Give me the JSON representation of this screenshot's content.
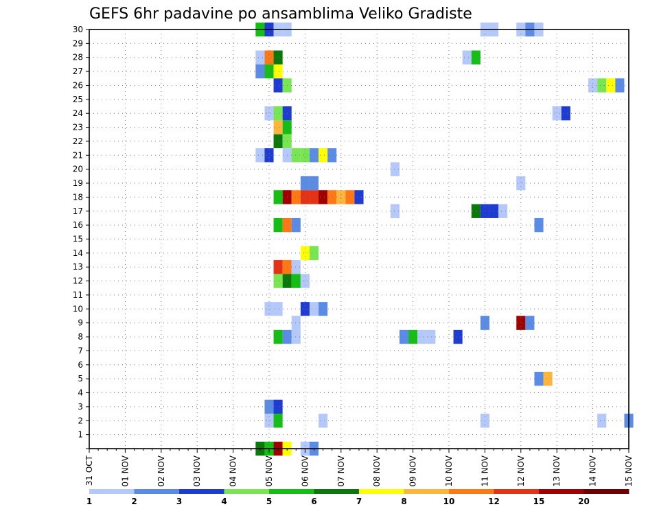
{
  "chart_data": {
    "type": "heatmap",
    "title": "GEFS 6hr padavine po ansamblima Veliko Gradiste",
    "x_tick_labels": [
      "31 OCT",
      "01 NOV",
      "02 NOV",
      "03 NOV",
      "04 NOV",
      "05 NOV",
      "06 NOV",
      "07 NOV",
      "08 NOV",
      "09 NOV",
      "10 NOV",
      "11 NOV",
      "12 NOV",
      "13 NOV",
      "14 NOV",
      "15 NOV"
    ],
    "y_tick_labels": [
      "1",
      "2",
      "3",
      "4",
      "5",
      "6",
      "7",
      "8",
      "9",
      "10",
      "11",
      "12",
      "13",
      "14",
      "15",
      "16",
      "17",
      "18",
      "19",
      "20",
      "21",
      "22",
      "23",
      "24",
      "25",
      "26",
      "27",
      "28",
      "29",
      "30"
    ],
    "ylim": [
      0,
      30
    ],
    "x_range_days": [
      0,
      15
    ],
    "grid": true,
    "colorbar": {
      "colors": [
        "#b4c8fa",
        "#5a8ce6",
        "#1e3cd2",
        "#78e650",
        "#14be14",
        "#0a780a",
        "#ffff00",
        "#ffb43c",
        "#ff7814",
        "#e63214",
        "#a00000",
        "#6e0000"
      ],
      "labels": [
        "1",
        "2",
        "3",
        "4",
        "5",
        "6",
        "7",
        "8",
        "10",
        "12",
        "15",
        "20"
      ]
    },
    "cells": [
      {
        "x": 4.75,
        "y": 30,
        "c": 4
      },
      {
        "x": 5.0,
        "y": 30,
        "c": 2
      },
      {
        "x": 5.25,
        "y": 30,
        "c": 0
      },
      {
        "x": 5.5,
        "y": 30,
        "c": 0
      },
      {
        "x": 11.0,
        "y": 30,
        "c": 0
      },
      {
        "x": 11.25,
        "y": 30,
        "c": 0
      },
      {
        "x": 12.0,
        "y": 30,
        "c": 0
      },
      {
        "x": 12.25,
        "y": 30,
        "c": 1
      },
      {
        "x": 12.5,
        "y": 30,
        "c": 0
      },
      {
        "x": 4.75,
        "y": 28,
        "c": 0
      },
      {
        "x": 5.0,
        "y": 28,
        "c": 8
      },
      {
        "x": 5.25,
        "y": 28,
        "c": 5
      },
      {
        "x": 10.5,
        "y": 28,
        "c": 0
      },
      {
        "x": 10.75,
        "y": 28,
        "c": 4
      },
      {
        "x": 4.75,
        "y": 27,
        "c": 1
      },
      {
        "x": 5.0,
        "y": 27,
        "c": 4
      },
      {
        "x": 5.25,
        "y": 27,
        "c": 6
      },
      {
        "x": 5.25,
        "y": 26,
        "c": 2
      },
      {
        "x": 5.5,
        "y": 26,
        "c": 3
      },
      {
        "x": 14.0,
        "y": 26,
        "c": 0
      },
      {
        "x": 14.25,
        "y": 26,
        "c": 3
      },
      {
        "x": 14.5,
        "y": 26,
        "c": 6
      },
      {
        "x": 14.75,
        "y": 26,
        "c": 1
      },
      {
        "x": 5.0,
        "y": 24,
        "c": 0
      },
      {
        "x": 5.25,
        "y": 24,
        "c": 3
      },
      {
        "x": 5.5,
        "y": 24,
        "c": 2
      },
      {
        "x": 13.0,
        "y": 24,
        "c": 0
      },
      {
        "x": 13.25,
        "y": 24,
        "c": 2
      },
      {
        "x": 5.25,
        "y": 23,
        "c": 7
      },
      {
        "x": 5.5,
        "y": 23,
        "c": 4
      },
      {
        "x": 5.25,
        "y": 22,
        "c": 5
      },
      {
        "x": 5.5,
        "y": 22,
        "c": 3
      },
      {
        "x": 4.75,
        "y": 21,
        "c": 0
      },
      {
        "x": 5.0,
        "y": 21,
        "c": 2
      },
      {
        "x": 5.5,
        "y": 21,
        "c": 0
      },
      {
        "x": 5.75,
        "y": 21,
        "c": 3
      },
      {
        "x": 6.0,
        "y": 21,
        "c": 3
      },
      {
        "x": 6.25,
        "y": 21,
        "c": 1
      },
      {
        "x": 6.5,
        "y": 21,
        "c": 6
      },
      {
        "x": 6.75,
        "y": 21,
        "c": 1
      },
      {
        "x": 8.5,
        "y": 20,
        "c": 0
      },
      {
        "x": 6.0,
        "y": 19,
        "c": 1
      },
      {
        "x": 6.25,
        "y": 19,
        "c": 1
      },
      {
        "x": 12.0,
        "y": 19,
        "c": 0
      },
      {
        "x": 5.25,
        "y": 18,
        "c": 4
      },
      {
        "x": 5.5,
        "y": 18,
        "c": 10
      },
      {
        "x": 5.75,
        "y": 18,
        "c": 8
      },
      {
        "x": 6.0,
        "y": 18,
        "c": 9
      },
      {
        "x": 6.25,
        "y": 18,
        "c": 9
      },
      {
        "x": 6.5,
        "y": 18,
        "c": 10
      },
      {
        "x": 6.75,
        "y": 18,
        "c": 8
      },
      {
        "x": 7.0,
        "y": 18,
        "c": 7
      },
      {
        "x": 7.25,
        "y": 18,
        "c": 8
      },
      {
        "x": 7.5,
        "y": 18,
        "c": 2
      },
      {
        "x": 8.5,
        "y": 17,
        "c": 0
      },
      {
        "x": 10.75,
        "y": 17,
        "c": 5
      },
      {
        "x": 11.0,
        "y": 17,
        "c": 2
      },
      {
        "x": 11.25,
        "y": 17,
        "c": 2
      },
      {
        "x": 11.5,
        "y": 17,
        "c": 0
      },
      {
        "x": 5.25,
        "y": 16,
        "c": 4
      },
      {
        "x": 5.5,
        "y": 16,
        "c": 8
      },
      {
        "x": 5.75,
        "y": 16,
        "c": 1
      },
      {
        "x": 12.5,
        "y": 16,
        "c": 1
      },
      {
        "x": 6.0,
        "y": 14,
        "c": 6
      },
      {
        "x": 6.25,
        "y": 14,
        "c": 3
      },
      {
        "x": 5.25,
        "y": 13,
        "c": 9
      },
      {
        "x": 5.5,
        "y": 13,
        "c": 8
      },
      {
        "x": 5.75,
        "y": 13,
        "c": 0
      },
      {
        "x": 5.25,
        "y": 12,
        "c": 3
      },
      {
        "x": 5.5,
        "y": 12,
        "c": 5
      },
      {
        "x": 5.75,
        "y": 12,
        "c": 4
      },
      {
        "x": 6.0,
        "y": 12,
        "c": 0
      },
      {
        "x": 5.0,
        "y": 10,
        "c": 0
      },
      {
        "x": 5.25,
        "y": 10,
        "c": 0
      },
      {
        "x": 6.0,
        "y": 10,
        "c": 2
      },
      {
        "x": 6.25,
        "y": 10,
        "c": 0
      },
      {
        "x": 6.5,
        "y": 10,
        "c": 1
      },
      {
        "x": 5.75,
        "y": 9,
        "c": 0
      },
      {
        "x": 11.0,
        "y": 9,
        "c": 1
      },
      {
        "x": 12.0,
        "y": 9,
        "c": 10
      },
      {
        "x": 12.25,
        "y": 9,
        "c": 1
      },
      {
        "x": 5.25,
        "y": 8,
        "c": 4
      },
      {
        "x": 5.5,
        "y": 8,
        "c": 1
      },
      {
        "x": 5.75,
        "y": 8,
        "c": 0
      },
      {
        "x": 8.75,
        "y": 8,
        "c": 1
      },
      {
        "x": 9.0,
        "y": 8,
        "c": 4
      },
      {
        "x": 9.25,
        "y": 8,
        "c": 0
      },
      {
        "x": 9.5,
        "y": 8,
        "c": 0
      },
      {
        "x": 10.25,
        "y": 8,
        "c": 2
      },
      {
        "x": 12.5,
        "y": 5,
        "c": 1
      },
      {
        "x": 12.75,
        "y": 5,
        "c": 7
      },
      {
        "x": 5.0,
        "y": 3,
        "c": 1
      },
      {
        "x": 5.25,
        "y": 3,
        "c": 2
      },
      {
        "x": 5.0,
        "y": 2,
        "c": 0
      },
      {
        "x": 5.25,
        "y": 2,
        "c": 4
      },
      {
        "x": 6.5,
        "y": 2,
        "c": 0
      },
      {
        "x": 11.0,
        "y": 2,
        "c": 0
      },
      {
        "x": 14.25,
        "y": 2,
        "c": 0
      },
      {
        "x": 15.0,
        "y": 2,
        "c": 1
      },
      {
        "x": 4.75,
        "y": 0,
        "c": 5
      },
      {
        "x": 5.0,
        "y": 0,
        "c": 4
      },
      {
        "x": 5.25,
        "y": 0,
        "c": 10
      },
      {
        "x": 5.5,
        "y": 0,
        "c": 6
      },
      {
        "x": 6.0,
        "y": 0,
        "c": 0
      },
      {
        "x": 6.25,
        "y": 0,
        "c": 1
      }
    ]
  }
}
